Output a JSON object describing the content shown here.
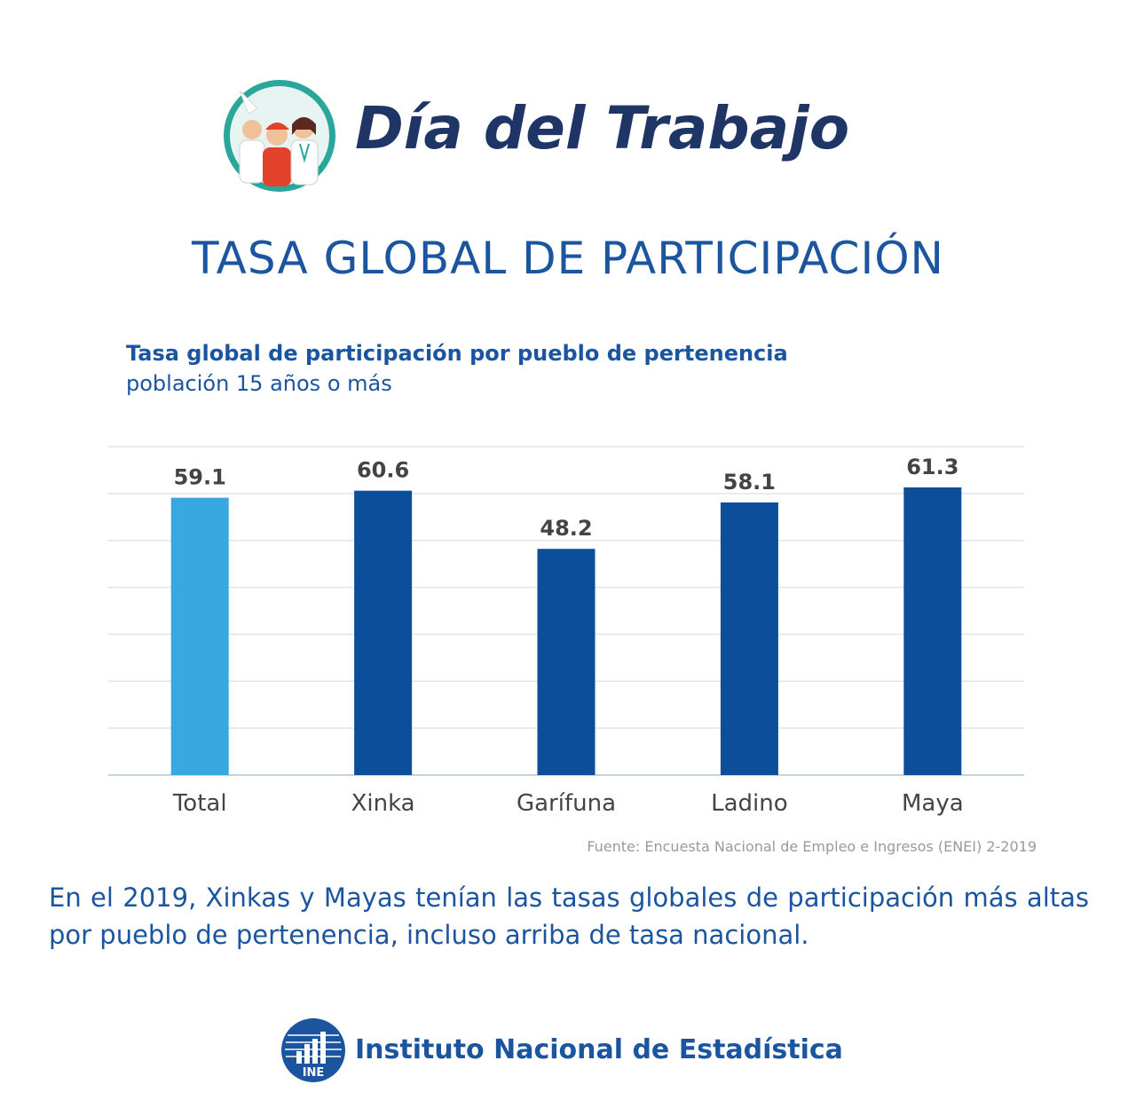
{
  "header": {
    "title": "Día del Trabajo",
    "illustration_icon": "workers-illustration-icon"
  },
  "main_title": "TASA GLOBAL DE PARTICIPACIÓN",
  "chart_data": {
    "type": "bar",
    "title": "Tasa global de participación por pueblo de pertenencia",
    "subtitle": "población 15 años o más",
    "categories": [
      "Total",
      "Xinka",
      "Garífuna",
      "Ladino",
      "Maya"
    ],
    "values": [
      59.1,
      60.6,
      48.2,
      58.1,
      61.3
    ],
    "value_labels": [
      "59.1",
      "60.6",
      "48.2",
      "58.1",
      "61.3"
    ],
    "bar_colors": [
      "#3aa8e0",
      "#0d4e9a",
      "#0d4e9a",
      "#0d4e9a",
      "#0d4e9a"
    ],
    "ylim": [
      0,
      70
    ],
    "grid": true,
    "xlabel": "",
    "ylabel": ""
  },
  "source_note": "Fuente: Encuesta Nacional de Empleo e Ingresos (ENEI)  2-2019",
  "summary": "En el 2019, Xinkas y Mayas tenían las tasas globales de participación más altas por pueblo de pertenencia,  incluso arriba de tasa nacional.",
  "footer": {
    "logo_text": "INE",
    "logo_icon": "ine-bar-chart-logo-icon",
    "name": "Instituto Nacional de Estadística"
  },
  "colors": {
    "primary_blue": "#1b55a0",
    "dark_bar": "#0d4e9a",
    "light_bar": "#3aa8e0",
    "title_navy": "#1f3566",
    "grid": "#dbe6ef",
    "label_gray": "#444444",
    "note_gray": "#9a9a9a"
  }
}
